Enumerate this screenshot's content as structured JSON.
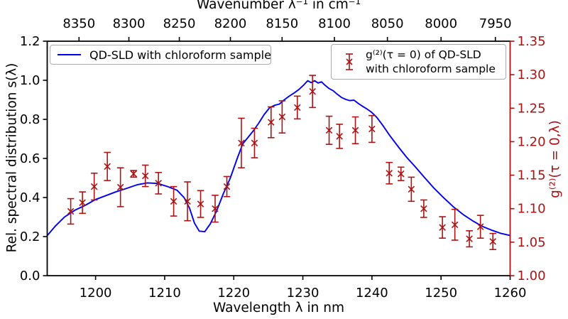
{
  "figure": {
    "bg": "#ffffff",
    "colors": {
      "line_blue": "#0000ee",
      "red": "#aa1414",
      "black": "#000000",
      "legend_border": "#aaaaaa"
    }
  },
  "titles": {
    "top": "Wavenumber λ⁻¹ in cm⁻¹",
    "bottom": "Wavelength λ in nm",
    "left": "Rel. spectral distribution s(λ)",
    "right": "g⁽²⁾(τ = 0,λ)"
  },
  "legend1": {
    "label": "QD-SLD with chloroform sample"
  },
  "legend2": {
    "line1": "g⁽²⁾(τ = 0) of QD-SLD",
    "line2": "with chloroform sample"
  },
  "chart_data": {
    "type": "line",
    "title": "",
    "grid": false,
    "legend_positions": [
      "upper left",
      "upper right"
    ],
    "axes": {
      "bottom": {
        "label": "Wavelength λ in nm",
        "range": [
          1193,
          1260
        ],
        "tick_values": [
          1200,
          1210,
          1220,
          1230,
          1240,
          1250,
          1260
        ],
        "tick_labels": [
          "1200",
          "1210",
          "1220",
          "1230",
          "1240",
          "1250",
          "1260"
        ],
        "color": "#000000"
      },
      "top": {
        "label": "Wavenumber λ⁻¹ in cm⁻¹",
        "unit_relation": "position_nm = 1e7 / wavenumber",
        "tick_values": [
          8350,
          8300,
          8250,
          8200,
          8150,
          8100,
          8050,
          8000,
          7950
        ],
        "tick_labels": [
          "8350",
          "8300",
          "8250",
          "8200",
          "8150",
          "8100",
          "8050",
          "8000",
          "7950"
        ],
        "color": "#000000"
      },
      "left": {
        "label": "Rel. spectral distribution s(λ)",
        "range": [
          0,
          1.2
        ],
        "tick_values": [
          0,
          0.2,
          0.4,
          0.6,
          0.8,
          1.0,
          1.2
        ],
        "tick_labels": [
          "0.0",
          "0.2",
          "0.4",
          "0.6",
          "0.8",
          "1.0",
          "1.2"
        ],
        "color": "#000000"
      },
      "right": {
        "label": "g⁽²⁾(τ = 0,λ)",
        "range": [
          1.0,
          1.35
        ],
        "tick_values": [
          1.0,
          1.05,
          1.1,
          1.15,
          1.2,
          1.25,
          1.3,
          1.35
        ],
        "tick_labels": [
          "1.00",
          "1.05",
          "1.10",
          "1.15",
          "1.20",
          "1.25",
          "1.30",
          "1.35"
        ],
        "color": "#aa1414"
      }
    },
    "series": [
      {
        "name": "QD-SLD with chloroform sample",
        "type": "line",
        "axis": "left",
        "color": "#0000ee",
        "points": [
          [
            1193.0,
            0.205
          ],
          [
            1194.2,
            0.255
          ],
          [
            1195.5,
            0.3
          ],
          [
            1197.0,
            0.335
          ],
          [
            1198.5,
            0.36
          ],
          [
            1200.0,
            0.39
          ],
          [
            1201.5,
            0.41
          ],
          [
            1203.0,
            0.43
          ],
          [
            1204.5,
            0.447
          ],
          [
            1206.0,
            0.465
          ],
          [
            1207.5,
            0.475
          ],
          [
            1209.0,
            0.472
          ],
          [
            1210.5,
            0.455
          ],
          [
            1211.8,
            0.437
          ],
          [
            1212.8,
            0.4
          ],
          [
            1213.6,
            0.345
          ],
          [
            1214.3,
            0.27
          ],
          [
            1215.0,
            0.228
          ],
          [
            1215.8,
            0.225
          ],
          [
            1216.6,
            0.265
          ],
          [
            1217.5,
            0.33
          ],
          [
            1218.5,
            0.42
          ],
          [
            1219.5,
            0.5
          ],
          [
            1220.5,
            0.6
          ],
          [
            1221.3,
            0.675
          ],
          [
            1222.0,
            0.705
          ],
          [
            1222.8,
            0.74
          ],
          [
            1223.6,
            0.78
          ],
          [
            1224.4,
            0.825
          ],
          [
            1225.2,
            0.86
          ],
          [
            1225.9,
            0.872
          ],
          [
            1226.6,
            0.878
          ],
          [
            1227.3,
            0.9
          ],
          [
            1228.0,
            0.918
          ],
          [
            1228.7,
            0.934
          ],
          [
            1229.4,
            0.952
          ],
          [
            1230.1,
            0.975
          ],
          [
            1230.7,
            0.998
          ],
          [
            1231.2,
            0.988
          ],
          [
            1231.7,
            0.998
          ],
          [
            1232.2,
            0.986
          ],
          [
            1232.7,
            0.992
          ],
          [
            1233.2,
            0.975
          ],
          [
            1233.8,
            0.958
          ],
          [
            1234.4,
            0.946
          ],
          [
            1235.0,
            0.928
          ],
          [
            1235.6,
            0.912
          ],
          [
            1236.2,
            0.902
          ],
          [
            1236.8,
            0.896
          ],
          [
            1237.4,
            0.898
          ],
          [
            1238.0,
            0.882
          ],
          [
            1238.6,
            0.868
          ],
          [
            1239.2,
            0.855
          ],
          [
            1239.9,
            0.838
          ],
          [
            1240.7,
            0.81
          ],
          [
            1241.6,
            0.768
          ],
          [
            1242.6,
            0.716
          ],
          [
            1243.8,
            0.66
          ],
          [
            1245.0,
            0.607
          ],
          [
            1246.3,
            0.556
          ],
          [
            1247.6,
            0.503
          ],
          [
            1249.0,
            0.447
          ],
          [
            1250.4,
            0.398
          ],
          [
            1251.8,
            0.352
          ],
          [
            1253.2,
            0.313
          ],
          [
            1254.6,
            0.28
          ],
          [
            1256.0,
            0.252
          ],
          [
            1257.4,
            0.232
          ],
          [
            1258.7,
            0.216
          ],
          [
            1260.0,
            0.206
          ]
        ]
      },
      {
        "name": "g⁽²⁾(τ = 0) of QD-SLD with chloroform sample",
        "type": "errorbar",
        "axis": "right",
        "color": "#aa1414",
        "marker": "x",
        "points": [
          [
            1196.4,
            1.096,
            0.019
          ],
          [
            1198.1,
            1.109,
            0.016
          ],
          [
            1199.8,
            1.133,
            0.02
          ],
          [
            1201.7,
            1.163,
            0.021
          ],
          [
            1203.6,
            1.132,
            0.029
          ],
          [
            1205.5,
            1.152,
            0.005
          ],
          [
            1207.2,
            1.149,
            0.016
          ],
          [
            1209.1,
            1.138,
            0.016
          ],
          [
            1211.3,
            1.111,
            0.022
          ],
          [
            1213.3,
            1.111,
            0.029
          ],
          [
            1215.2,
            1.107,
            0.02
          ],
          [
            1217.3,
            1.1,
            0.02
          ],
          [
            1219.0,
            1.133,
            0.015
          ],
          [
            1221.1,
            1.198,
            0.037
          ],
          [
            1223.0,
            1.198,
            0.022
          ],
          [
            1225.4,
            1.229,
            0.023
          ],
          [
            1227.0,
            1.237,
            0.024
          ],
          [
            1229.2,
            1.251,
            0.017
          ],
          [
            1231.4,
            1.275,
            0.024
          ],
          [
            1233.8,
            1.217,
            0.021
          ],
          [
            1235.3,
            1.208,
            0.018
          ],
          [
            1237.6,
            1.217,
            0.02
          ],
          [
            1240.0,
            1.219,
            0.02
          ],
          [
            1242.5,
            1.153,
            0.016
          ],
          [
            1244.2,
            1.152,
            0.01
          ],
          [
            1245.7,
            1.129,
            0.018
          ],
          [
            1247.5,
            1.1,
            0.013
          ],
          [
            1250.2,
            1.072,
            0.016
          ],
          [
            1252.0,
            1.076,
            0.023
          ],
          [
            1254.1,
            1.055,
            0.012
          ],
          [
            1255.7,
            1.073,
            0.017
          ],
          [
            1257.5,
            1.051,
            0.012
          ]
        ]
      }
    ]
  }
}
